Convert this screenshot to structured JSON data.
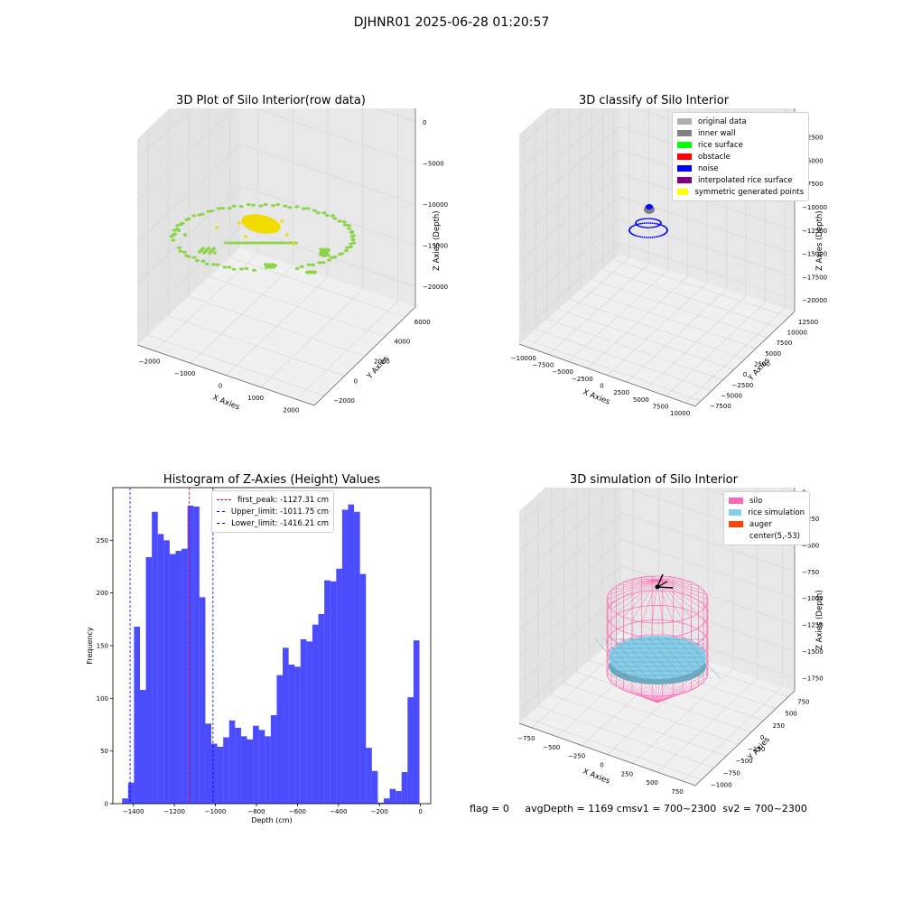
{
  "figure": {
    "title": "DJHNR01 2025-06-28 01:20:57",
    "footer": "flag = 0     avgDepth = 1169 cmsv1 = 700~2300  sv2 = 700~2300"
  },
  "panels": {
    "raw": {
      "title": "3D Plot of Silo Interior(row data)",
      "xlabel": "X Axies",
      "ylabel": "Y Axies",
      "zlabel": "Z Axies (Depth)",
      "xticks": [
        "−2000",
        "−1000",
        "0",
        "1000",
        "2000"
      ],
      "yticks": [
        "−2000",
        "0",
        "2000",
        "4000",
        "6000"
      ],
      "zticks": [
        "0",
        "−5000",
        "−10000",
        "−15000",
        "−20000"
      ],
      "colors": {
        "points": "#8ed44b",
        "surface": "#f0dc00"
      }
    },
    "classify": {
      "title": "3D classify of Silo Interior",
      "xlabel": "X Axies",
      "ylabel": "Y Axies",
      "zlabel": "Z Axies (Depth)",
      "xticks": [
        "−10000",
        "−7500",
        "−5000",
        "−2500",
        "0",
        "2500",
        "5000",
        "7500",
        "10000"
      ],
      "yticks": [
        "−7500",
        "−5000",
        "−2500",
        "0",
        "2500",
        "5000",
        "7500",
        "10000",
        "12500"
      ],
      "zticks": [
        "0",
        "−2500",
        "−5000",
        "−7500",
        "−10000",
        "−12500",
        "−15000",
        "−17500",
        "−20000"
      ],
      "legend": [
        {
          "label": "original data",
          "color": "#b0b0b0"
        },
        {
          "label": "inner wall",
          "color": "#808080"
        },
        {
          "label": "rice surface",
          "color": "#00ff00"
        },
        {
          "label": "obstacle",
          "color": "#ff0000"
        },
        {
          "label": "noise",
          "color": "#0000ff"
        },
        {
          "label": "interpolated rice surface",
          "color": "#800080"
        },
        {
          "label": "symmetric generated points",
          "color": "#ffff00"
        }
      ]
    },
    "simulation": {
      "title": "3D simulation of Silo Interior",
      "xlabel": "X Axies",
      "ylabel": "Y Axies",
      "zlabel": "Z Axies (Depth)",
      "xticks": [
        "−750",
        "−500",
        "−250",
        "0",
        "250",
        "500",
        "750"
      ],
      "yticks": [
        "−1000",
        "−750",
        "−500",
        "−250",
        "0",
        "250",
        "500",
        "750"
      ],
      "zticks": [
        "0",
        "−250",
        "−500",
        "−750",
        "−1000",
        "−1250",
        "−1500",
        "−1750"
      ],
      "legend": [
        {
          "label": "silo",
          "color": "#ff69b4"
        },
        {
          "label": "rice simulation",
          "color": "#87ceeb"
        },
        {
          "label": "auger",
          "color": "#ff4500"
        },
        {
          "label": "center(5,-53)",
          "color": "none"
        }
      ]
    }
  },
  "chart_data": [
    {
      "type": "scatter",
      "title": "3D Plot of Silo Interior(row data)",
      "xlabel": "X Axies",
      "ylabel": "Y Axies",
      "zlabel": "Z Axies (Depth)",
      "xlim": [
        -2500,
        2500
      ],
      "ylim": [
        -2500,
        6500
      ],
      "zlim": [
        -21000,
        0
      ]
    },
    {
      "type": "scatter",
      "title": "3D classify of Silo Interior",
      "xlabel": "X Axies",
      "ylabel": "Y Axies",
      "zlabel": "Z Axies (Depth)",
      "xlim": [
        -10000,
        10000
      ],
      "ylim": [
        -7500,
        12500
      ],
      "zlim": [
        -20000,
        0
      ]
    },
    {
      "type": "bar",
      "title": "Histogram of Z-Axies (Height) Values",
      "xlabel": "Depth (cm)",
      "ylabel": "Frequency",
      "xlim": [
        -1500,
        50
      ],
      "ylim": [
        0,
        300
      ],
      "xticks": [
        -1400,
        -1200,
        -1000,
        -800,
        -600,
        -400,
        -200,
        0
      ],
      "yticks": [
        0,
        50,
        100,
        150,
        200,
        250
      ],
      "bin_start": -1455,
      "bin_width": 29,
      "values": [
        5,
        20,
        168,
        108,
        234,
        277,
        256,
        250,
        237,
        240,
        242,
        283,
        282,
        196,
        76,
        57,
        54,
        63,
        79,
        72,
        64,
        61,
        74,
        70,
        64,
        84,
        122,
        148,
        132,
        130,
        156,
        154,
        170,
        180,
        212,
        211,
        223,
        279,
        284,
        277,
        218,
        53,
        31,
        1,
        5,
        14,
        12,
        30,
        101,
        155
      ],
      "color": "#0000ff",
      "vlines": [
        {
          "x": -1127.31,
          "color": "#ff0000",
          "label": "first_peak: -1127.31 cm"
        },
        {
          "x": -1011.75,
          "color": "#0000ff",
          "label": "Upper_limit: -1011.75 cm"
        },
        {
          "x": -1416.21,
          "color": "#0000ff",
          "label": "Lower_limit: -1416.21 cm"
        }
      ],
      "legend": "top-center"
    },
    {
      "type": "scatter",
      "title": "3D simulation of Silo Interior",
      "xlabel": "X Axies",
      "ylabel": "Y Axies",
      "zlabel": "Z Axies (Depth)",
      "xlim": [
        -900,
        900
      ],
      "ylim": [
        -1000,
        900
      ],
      "zlim": [
        -1800,
        100
      ]
    }
  ]
}
